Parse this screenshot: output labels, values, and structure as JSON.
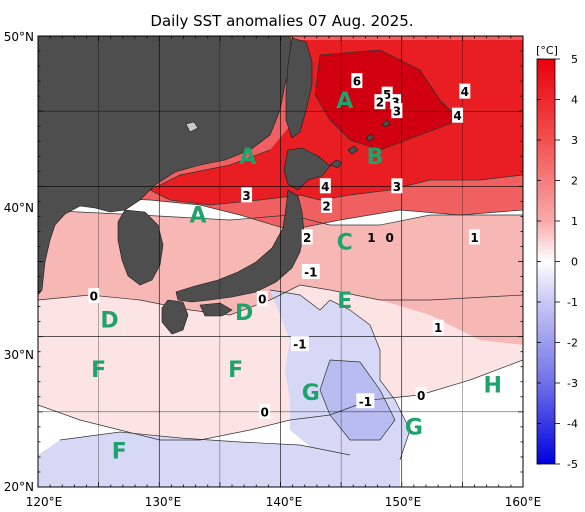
{
  "title": "Daily SST anomalies 07 Aug. 2025.",
  "unit_label": "[°C]",
  "colorbar": {
    "ticks": [
      "5",
      "4",
      "3",
      "2",
      "1",
      "0",
      "-1",
      "-2",
      "-3",
      "-4",
      "-5"
    ],
    "range": [
      -5,
      5
    ],
    "warm_color": "#e8000b",
    "cool_color": "#0000e0"
  },
  "lat_labels": [
    "50°N",
    "40°N",
    "30°N",
    "20°N"
  ],
  "lon_labels": [
    "120°E",
    "130°E",
    "140°E",
    "150°E",
    "160°E"
  ],
  "map_extent": {
    "lon": [
      120,
      160
    ],
    "lat": [
      20,
      50
    ]
  },
  "region_labels": [
    {
      "code": "A",
      "lon": 145.3,
      "lat": 45.6
    },
    {
      "code": "A",
      "lon": 137.3,
      "lat": 41.9
    },
    {
      "code": "A",
      "lon": 133.2,
      "lat": 38.0
    },
    {
      "code": "B",
      "lon": 147.8,
      "lat": 41.9
    },
    {
      "code": "C",
      "lon": 145.3,
      "lat": 36.2
    },
    {
      "code": "D",
      "lon": 125.9,
      "lat": 31.0
    },
    {
      "code": "D",
      "lon": 137.0,
      "lat": 31.5
    },
    {
      "code": "E",
      "lon": 145.3,
      "lat": 32.3
    },
    {
      "code": "F",
      "lon": 125.0,
      "lat": 27.7
    },
    {
      "code": "F",
      "lon": 136.3,
      "lat": 27.7
    },
    {
      "code": "F",
      "lon": 126.7,
      "lat": 22.3
    },
    {
      "code": "G",
      "lon": 142.5,
      "lat": 26.2
    },
    {
      "code": "G",
      "lon": 151.0,
      "lat": 23.9
    },
    {
      "code": "H",
      "lon": 157.5,
      "lat": 26.7
    }
  ],
  "contour_labels": [
    {
      "text": "6",
      "lon": 146.3,
      "lat": 47.0,
      "boxed": true
    },
    {
      "text": "5",
      "lon": 148.8,
      "lat": 46.1,
      "boxed": true
    },
    {
      "text": "2",
      "lon": 148.2,
      "lat": 45.6,
      "boxed": true
    },
    {
      "text": "3",
      "lon": 149.5,
      "lat": 45.6,
      "boxed": true
    },
    {
      "text": "3",
      "lon": 149.6,
      "lat": 45.0,
      "boxed": true
    },
    {
      "text": "4",
      "lon": 155.2,
      "lat": 46.3,
      "boxed": true
    },
    {
      "text": "4",
      "lon": 154.6,
      "lat": 44.7,
      "boxed": true
    },
    {
      "text": "3",
      "lon": 149.6,
      "lat": 40.0,
      "boxed": true
    },
    {
      "text": "4",
      "lon": 143.7,
      "lat": 40.0,
      "boxed": true
    },
    {
      "text": "3",
      "lon": 137.2,
      "lat": 39.4,
      "boxed": true
    },
    {
      "text": "2",
      "lon": 143.8,
      "lat": 38.7,
      "boxed": true
    },
    {
      "text": "2",
      "lon": 142.2,
      "lat": 36.6,
      "boxed": true
    },
    {
      "text": "1",
      "lon": 147.5,
      "lat": 36.6,
      "boxed": false
    },
    {
      "text": "0",
      "lon": 149.0,
      "lat": 36.6,
      "boxed": false
    },
    {
      "text": "1",
      "lon": 156.0,
      "lat": 36.6,
      "boxed": true
    },
    {
      "text": "-1",
      "lon": 142.5,
      "lat": 34.3,
      "boxed": true
    },
    {
      "text": "0",
      "lon": 124.6,
      "lat": 32.7,
      "boxed": true
    },
    {
      "text": "0",
      "lon": 138.5,
      "lat": 32.5,
      "boxed": true
    },
    {
      "text": "1",
      "lon": 153.0,
      "lat": 30.6,
      "boxed": true
    },
    {
      "text": "-1",
      "lon": 141.6,
      "lat": 29.5,
      "boxed": true
    },
    {
      "text": "-1",
      "lon": 147.0,
      "lat": 25.7,
      "boxed": true
    },
    {
      "text": "0",
      "lon": 138.7,
      "lat": 25.0,
      "boxed": true
    },
    {
      "text": "0",
      "lon": 151.6,
      "lat": 26.1,
      "boxed": true
    }
  ]
}
